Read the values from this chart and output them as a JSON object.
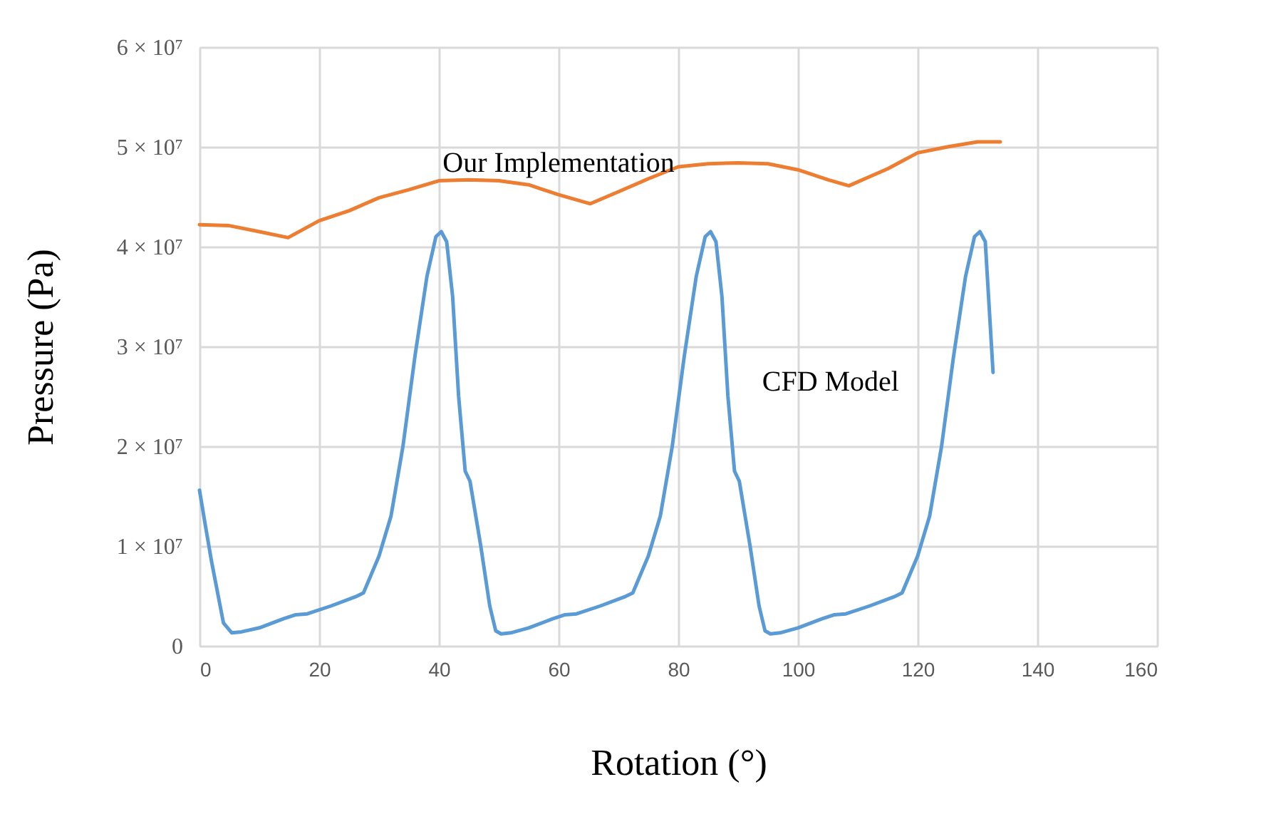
{
  "chart_data": {
    "type": "line",
    "xlabel": "Rotation (°)",
    "ylabel": "Pressure (Pa)",
    "xlim": [
      0,
      160
    ],
    "xticks": [
      0,
      20,
      40,
      60,
      80,
      100,
      120,
      140,
      160
    ],
    "ylim": [
      0,
      60000000
    ],
    "yticks": [
      0,
      {
        "value": 10000000,
        "label": "1 × 10⁷"
      },
      {
        "value": 20000000,
        "label": "2 × 10⁷"
      },
      {
        "value": 30000000,
        "label": "3 × 10⁷"
      },
      {
        "value": 40000000,
        "label": "4 × 10⁷"
      },
      {
        "value": 50000000,
        "label": "5 × 10⁷"
      },
      {
        "value": 60000000,
        "label": "6 × 10⁷"
      }
    ],
    "grid": true,
    "legend": false,
    "marker": "none",
    "line_style": "solid",
    "series": [
      {
        "name": "Our Implementation",
        "color": "#ed7d31",
        "x": [
          0,
          5,
          10,
          14.8,
          20,
          25,
          30,
          35,
          40,
          45,
          50,
          55,
          60,
          65.3,
          70,
          75,
          80,
          85,
          90,
          95,
          100,
          105,
          108.5,
          115,
          120,
          125,
          130,
          133.8
        ],
        "values": [
          42200000,
          42100000,
          41500000,
          40900000,
          42600000,
          43600000,
          44900000,
          45700000,
          46600000,
          46700000,
          46600000,
          46200000,
          45200000,
          44300000,
          45500000,
          46800000,
          48000000,
          48300000,
          48400000,
          48300000,
          47700000,
          46700000,
          46100000,
          47800000,
          49400000,
          50000000,
          50500000,
          50500000
        ]
      },
      {
        "name": "CFD Model",
        "color": "#5b9bd5",
        "x": [
          0,
          1,
          2,
          4,
          5.4,
          7,
          10,
          14,
          16,
          18,
          22,
          26,
          27.4,
          30,
          32,
          34,
          36,
          38,
          39.5,
          40.4,
          41.3,
          42.3,
          43.3,
          44.4,
          45.2,
          47,
          48.5,
          49.5,
          50.4,
          52,
          55,
          59,
          61,
          63,
          67,
          71,
          72.4,
          75,
          77,
          79,
          81,
          83,
          84.5,
          85.4,
          86.3,
          87.3,
          88.3,
          89.4,
          90.2,
          92,
          93.5,
          94.5,
          95.4,
          97,
          100,
          104,
          106,
          108,
          112,
          116,
          117.4,
          120,
          122,
          124,
          126,
          128,
          129.5,
          130.4,
          131.3,
          132.6
        ],
        "values": [
          15600000,
          12000000,
          8500000,
          2300000,
          1300000,
          1400000,
          1800000,
          2700000,
          3100000,
          3200000,
          4000000,
          4900000,
          5300000,
          9000000,
          13000000,
          20000000,
          29000000,
          37000000,
          41000000,
          41500000,
          40500000,
          35000000,
          25000000,
          17500000,
          16500000,
          10000000,
          4000000,
          1500000,
          1200000,
          1300000,
          1800000,
          2700000,
          3100000,
          3200000,
          4000000,
          4900000,
          5300000,
          9000000,
          13000000,
          20000000,
          29000000,
          37000000,
          41000000,
          41500000,
          40500000,
          35000000,
          25000000,
          17500000,
          16500000,
          10000000,
          4000000,
          1500000,
          1200000,
          1300000,
          1800000,
          2700000,
          3100000,
          3200000,
          4000000,
          4900000,
          5300000,
          9000000,
          13000000,
          20000000,
          29000000,
          37000000,
          41000000,
          41500000,
          40500000,
          27400000
        ]
      }
    ]
  }
}
